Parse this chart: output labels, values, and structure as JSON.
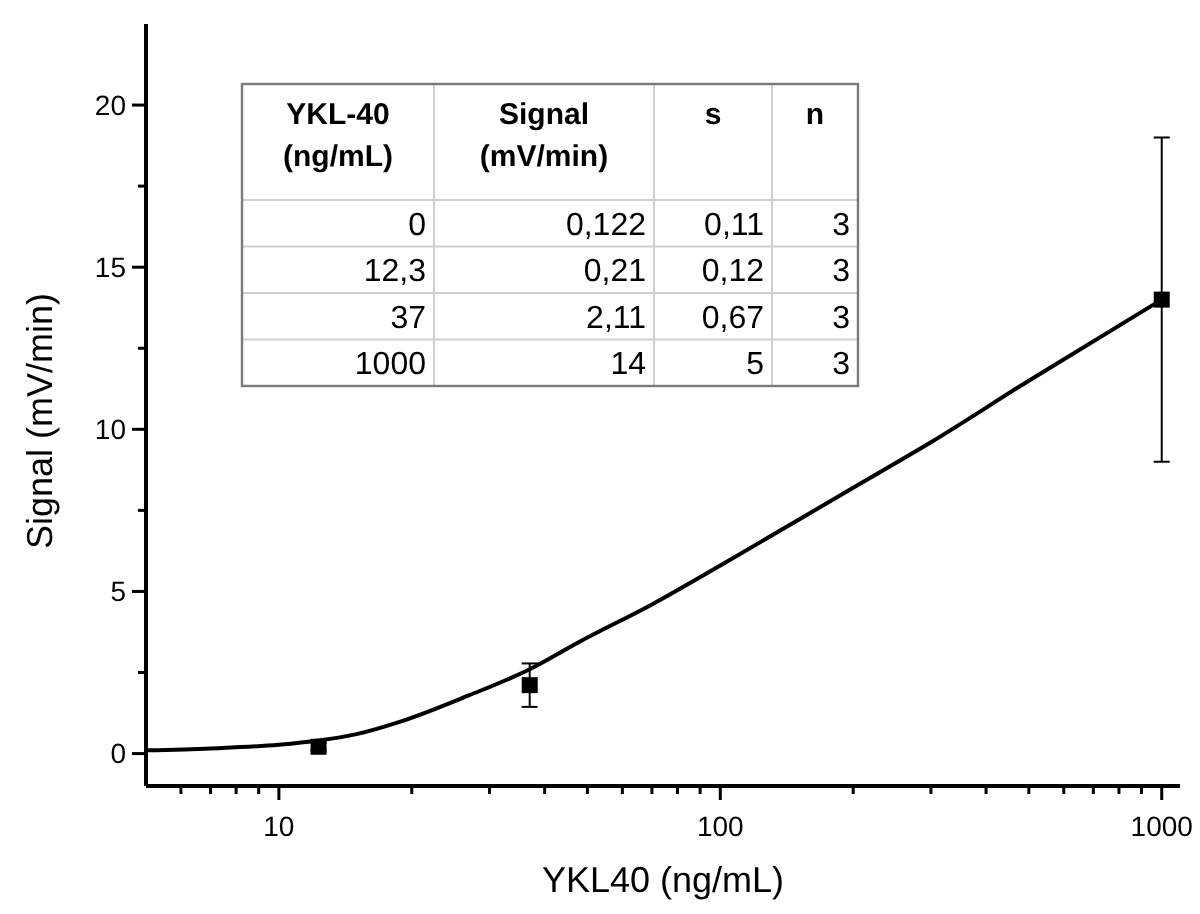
{
  "chart_data": [
    {
      "type": "scatter",
      "xlabel": "YKL40 (ng/mL)",
      "ylabel": "Signal (mV/min)",
      "log": "x",
      "xlim": [
        5,
        1100
      ],
      "ylim": [
        -1,
        22.5
      ],
      "xticks": [
        {
          "value": 6,
          "label": null
        },
        {
          "value": 7,
          "label": null
        },
        {
          "value": 8,
          "label": null
        },
        {
          "value": 9,
          "label": null
        },
        10,
        {
          "value": 20,
          "label": null
        },
        {
          "value": 30,
          "label": null
        },
        {
          "value": 40,
          "label": null
        },
        {
          "value": 50,
          "label": null
        },
        {
          "value": 60,
          "label": null
        },
        {
          "value": 70,
          "label": null
        },
        {
          "value": 80,
          "label": null
        },
        {
          "value": 90,
          "label": null
        },
        100,
        {
          "value": 200,
          "label": null
        },
        {
          "value": 300,
          "label": null
        },
        {
          "value": 400,
          "label": null
        },
        {
          "value": 500,
          "label": null
        },
        {
          "value": 600,
          "label": null
        },
        {
          "value": 700,
          "label": null
        },
        {
          "value": 800,
          "label": null
        },
        {
          "value": 900,
          "label": null
        },
        1000
      ],
      "yticks": [
        0,
        {
          "value": 2.5,
          "label": null
        },
        5,
        {
          "value": 7.5,
          "label": null
        },
        10,
        {
          "value": 12.5,
          "label": null
        },
        15,
        {
          "value": 17.5,
          "label": null
        },
        20
      ],
      "series": [
        {
          "type": "scatter",
          "marker": "square",
          "color": "#000000",
          "x": [
            12.3,
            37,
            1000
          ],
          "values": [
            0.21,
            2.11,
            14
          ],
          "errors": [
            0.12,
            0.67,
            5
          ]
        },
        {
          "type": "line",
          "marker": "none",
          "color": "#000000",
          "x": [
            5,
            7,
            10,
            12.3,
            15,
            19,
            27,
            37,
            48,
            70,
            100,
            200,
            300,
            500,
            1000
          ],
          "values": [
            0.1,
            0.16,
            0.27,
            0.4,
            0.6,
            1.0,
            1.8,
            2.6,
            3.45,
            4.6,
            5.8,
            8.2,
            9.6,
            11.5,
            14
          ]
        }
      ]
    },
    {
      "type": "other",
      "categories": [
        "YKL-40 (ng/mL)",
        "Signal (mV/min)",
        "s",
        "n"
      ],
      "cell_labels": [
        [
          "0",
          "0,122",
          "0,11",
          "3"
        ],
        [
          "12,3",
          "0,21",
          "0,12",
          "3"
        ],
        [
          "37",
          "2,11",
          "0,67",
          "3"
        ],
        [
          "1000",
          "14",
          "5",
          "3"
        ]
      ]
    }
  ]
}
